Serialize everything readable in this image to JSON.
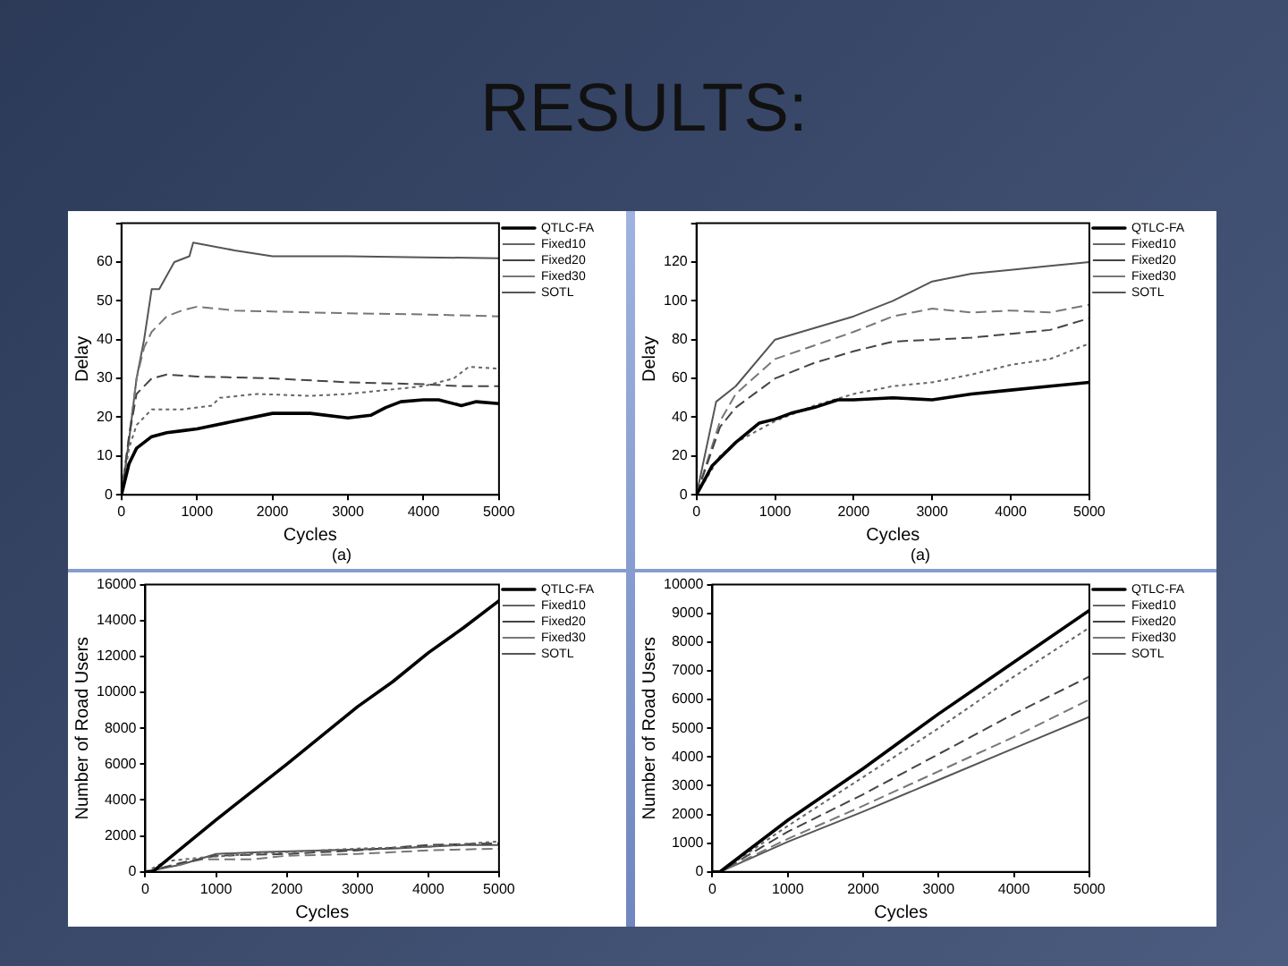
{
  "chart_data": [
    {
      "type": "other",
      "title": "RESULTS:"
    },
    {
      "type": "line",
      "xlabel": "Cycles",
      "ylabel": "Delay",
      "annotations": [
        "(a)"
      ],
      "xlim": [
        0,
        5000
      ],
      "xticks": [
        0,
        1000,
        2000,
        3000,
        4000,
        5000
      ],
      "ylim": [
        0,
        70
      ],
      "yticks": [
        0,
        10,
        20,
        30,
        40,
        50,
        60,
        {
          "value": 70,
          "label": null
        }
      ],
      "legend": "top right",
      "series": [
        {
          "name": "QTLC-FA",
          "color": "#000000",
          "line_style": "solid",
          "x": [
            0,
            100,
            200,
            400,
            600,
            800,
            1000,
            1500,
            2000,
            2500,
            3000,
            3300,
            3500,
            3700,
            4000,
            4200,
            4500,
            4700,
            5000
          ],
          "values": [
            0,
            8,
            12,
            15,
            16,
            16.5,
            17,
            19,
            21,
            21,
            19.8,
            20.5,
            22.5,
            24,
            24.5,
            24.5,
            23,
            24,
            23.5
          ]
        },
        {
          "name": "Fixed10",
          "color": "#666666",
          "line_style": "dotted",
          "x": [
            0,
            100,
            200,
            400,
            800,
            1200,
            1300,
            1800,
            2500,
            3000,
            3500,
            4000,
            4400,
            4600,
            5000
          ],
          "values": [
            0,
            12,
            18,
            22,
            22,
            23,
            25,
            26,
            25.5,
            26,
            27,
            28,
            30,
            33,
            32.5
          ]
        },
        {
          "name": "Fixed20",
          "color": "#444444",
          "line_style": "dashed",
          "x": [
            0,
            100,
            200,
            400,
            600,
            1000,
            2000,
            3000,
            4000,
            4500,
            5000
          ],
          "values": [
            0,
            15,
            26,
            30,
            31,
            30.5,
            30,
            29,
            28.5,
            28,
            28
          ]
        },
        {
          "name": "Fixed30",
          "color": "#777777",
          "line_style": "dashed",
          "x": [
            0,
            100,
            200,
            300,
            400,
            600,
            800,
            1000,
            1500,
            2500,
            3000,
            4000,
            5000
          ],
          "values": [
            0,
            15,
            30,
            38,
            42,
            46,
            47.5,
            48.5,
            47.5,
            47,
            46.8,
            46.5,
            46
          ]
        },
        {
          "name": "SOTL",
          "color": "#555555",
          "line_style": "solid",
          "x": [
            0,
            100,
            200,
            300,
            400,
            500,
            700,
            900,
            950,
            1500,
            2000,
            3000,
            4000,
            5000
          ],
          "values": [
            0,
            14,
            30,
            40,
            53,
            53,
            60,
            61.5,
            65,
            63,
            61.5,
            61.5,
            61.2,
            61
          ]
        }
      ]
    },
    {
      "type": "line",
      "xlabel": "Cycles",
      "ylabel": "Delay",
      "annotations": [
        "(a)"
      ],
      "xlim": [
        0,
        5000
      ],
      "xticks": [
        0,
        1000,
        2000,
        3000,
        4000,
        5000
      ],
      "ylim": [
        0,
        140
      ],
      "yticks": [
        0,
        20,
        40,
        60,
        80,
        100,
        120,
        {
          "value": 140,
          "label": null
        }
      ],
      "legend": "top right",
      "series": [
        {
          "name": "QTLC-FA",
          "color": "#000000",
          "line_style": "solid",
          "x": [
            0,
            200,
            500,
            800,
            1000,
            1200,
            1500,
            1800,
            2000,
            2500,
            3000,
            3500,
            4000,
            4500,
            5000
          ],
          "values": [
            0,
            15,
            27,
            37,
            39,
            42,
            45,
            49,
            49,
            50,
            49,
            52,
            54,
            56,
            58
          ]
        },
        {
          "name": "Fixed10",
          "color": "#666666",
          "line_style": "dotted",
          "x": [
            0,
            300,
            500,
            1000,
            1500,
            2000,
            2500,
            3000,
            3500,
            4000,
            4500,
            5000
          ],
          "values": [
            0,
            20,
            27,
            38,
            46,
            52,
            56,
            58,
            62,
            67,
            70,
            78
          ]
        },
        {
          "name": "Fixed20",
          "color": "#444444",
          "line_style": "dashed",
          "x": [
            0,
            300,
            500,
            1000,
            1500,
            2000,
            2500,
            3000,
            3500,
            4000,
            4500,
            5000
          ],
          "values": [
            0,
            35,
            45,
            60,
            68,
            74,
            79,
            80,
            81,
            83,
            85,
            91
          ]
        },
        {
          "name": "Fixed30",
          "color": "#777777",
          "line_style": "dashed",
          "x": [
            0,
            300,
            500,
            1000,
            1500,
            2000,
            2500,
            3000,
            3500,
            4000,
            4500,
            5000
          ],
          "values": [
            0,
            38,
            52,
            70,
            77,
            84,
            92,
            96,
            94,
            95,
            94,
            98
          ]
        },
        {
          "name": "SOTL",
          "color": "#555555",
          "line_style": "solid",
          "x": [
            0,
            250,
            500,
            1000,
            1500,
            2000,
            2500,
            3000,
            3500,
            4000,
            4500,
            5000
          ],
          "values": [
            0,
            48,
            56,
            80,
            86,
            92,
            100,
            110,
            114,
            116,
            118,
            120
          ]
        }
      ]
    },
    {
      "type": "line",
      "xlabel": "Cycles",
      "ylabel": "Number of Road Users",
      "xlim": [
        0,
        5000
      ],
      "xticks": [
        0,
        1000,
        2000,
        3000,
        4000,
        5000
      ],
      "ylim": [
        0,
        16000
      ],
      "yticks": [
        0,
        2000,
        4000,
        6000,
        8000,
        10000,
        12000,
        14000,
        16000
      ],
      "legend": "top right",
      "series": [
        {
          "name": "QTLC-FA",
          "color": "#000000",
          "line_style": "solid",
          "x": [
            0,
            100,
            1000,
            2000,
            3000,
            3500,
            4000,
            4500,
            5000
          ],
          "values": [
            0,
            0,
            2900,
            6000,
            9200,
            10600,
            12200,
            13600,
            15100
          ]
        },
        {
          "name": "Fixed10",
          "color": "#666666",
          "line_style": "dotted",
          "x": [
            0,
            300,
            800,
            1500,
            2000,
            3000,
            4000,
            5000
          ],
          "values": [
            0,
            600,
            800,
            1000,
            1100,
            1300,
            1400,
            1700
          ]
        },
        {
          "name": "Fixed20",
          "color": "#444444",
          "line_style": "dashed",
          "x": [
            0,
            500,
            1000,
            2000,
            3000,
            4000,
            5000
          ],
          "values": [
            0,
            500,
            900,
            1000,
            1200,
            1500,
            1600
          ]
        },
        {
          "name": "Fixed30",
          "color": "#777777",
          "line_style": "dashed",
          "x": [
            0,
            800,
            1500,
            2000,
            3000,
            4000,
            5000
          ],
          "values": [
            0,
            700,
            700,
            900,
            1000,
            1200,
            1300
          ]
        },
        {
          "name": "SOTL",
          "color": "#555555",
          "line_style": "solid",
          "x": [
            0,
            500,
            1000,
            1600,
            2500,
            3500,
            4500,
            5000
          ],
          "values": [
            0,
            400,
            1000,
            1100,
            1200,
            1300,
            1500,
            1500
          ]
        }
      ]
    },
    {
      "type": "line",
      "xlabel": "Cycles",
      "ylabel": "Number of Road Users",
      "xlim": [
        0,
        5000
      ],
      "xticks": [
        0,
        1000,
        2000,
        3000,
        4000,
        5000
      ],
      "ylim": [
        0,
        10000
      ],
      "yticks": [
        0,
        1000,
        2000,
        3000,
        4000,
        5000,
        6000,
        7000,
        8000,
        9000,
        10000
      ],
      "legend": "top right",
      "series": [
        {
          "name": "QTLC-FA",
          "color": "#000000",
          "line_style": "solid",
          "x": [
            0,
            100,
            1000,
            2000,
            3000,
            4000,
            5000
          ],
          "values": [
            0,
            0,
            1800,
            3600,
            5500,
            7300,
            9100
          ]
        },
        {
          "name": "Fixed10",
          "color": "#666666",
          "line_style": "dotted",
          "x": [
            0,
            100,
            1000,
            2000,
            3000,
            4000,
            5000
          ],
          "values": [
            0,
            0,
            1600,
            3300,
            5000,
            6800,
            8500
          ]
        },
        {
          "name": "Fixed20",
          "color": "#444444",
          "line_style": "dashed",
          "x": [
            0,
            100,
            1000,
            2000,
            3000,
            4000,
            5000
          ],
          "values": [
            0,
            0,
            1400,
            2700,
            4100,
            5500,
            6800
          ]
        },
        {
          "name": "Fixed30",
          "color": "#777777",
          "line_style": "dashed",
          "x": [
            0,
            100,
            1000,
            2000,
            3000,
            4000,
            5000
          ],
          "values": [
            0,
            0,
            1150,
            2300,
            3500,
            4700,
            6000
          ]
        },
        {
          "name": "SOTL",
          "color": "#555555",
          "line_style": "solid",
          "x": [
            0,
            100,
            1000,
            2000,
            3000,
            4000,
            5000
          ],
          "values": [
            0,
            0,
            1050,
            2100,
            3200,
            4300,
            5400
          ]
        }
      ]
    }
  ]
}
